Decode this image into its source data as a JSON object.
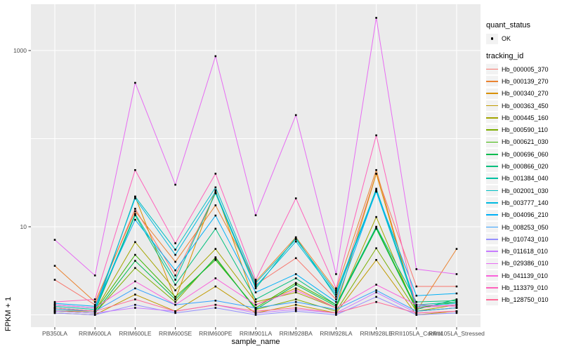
{
  "chart_data": {
    "type": "line",
    "title": "",
    "xlabel": "sample_name",
    "ylabel": "FPKM + 1",
    "y_scale": "log10",
    "ylim": [
      1,
      3400
    ],
    "grid": "on",
    "legend_position": "right",
    "y_axis_ticks": [
      {
        "value": 1000,
        "label": "1000"
      },
      {
        "value": 10,
        "label": "10"
      }
    ],
    "y_gridlines": [
      1,
      10,
      100,
      1000
    ],
    "categories": [
      "PB350LA",
      "RRIM600LA",
      "RRIM600LE",
      "RRIM600SE",
      "RRIM600PE",
      "RRIM901LA",
      "RRIM928BA",
      "RRIM928LA",
      "RRIM928LE",
      "RRII105LA_Control",
      "RRII105LA_Stressed"
    ],
    "quant_status": {
      "title": "quant_status",
      "value": "OK"
    },
    "tracking_id_title": "tracking_id",
    "series": [
      {
        "name": "Hb_000005_370",
        "color": "#F8766D",
        "values": [
          2.5,
          1.3,
          16,
          2.8,
          24,
          2.2,
          4.4,
          1.5,
          40,
          2.1,
          2.1
        ]
      },
      {
        "name": "Hb_000139_270",
        "color": "#EA8331",
        "values": [
          3.6,
          1.4,
          15,
          4.0,
          17.5,
          2.4,
          7.6,
          1.9,
          44,
          1.1,
          5.6
        ]
      },
      {
        "name": "Hb_000340_270",
        "color": "#D89000",
        "values": [
          1.1,
          1.1,
          22,
          1.5,
          26,
          1.3,
          2.0,
          1.2,
          40,
          1.1,
          1.2
        ]
      },
      {
        "name": "Hb_000363_450",
        "color": "#C09B00",
        "values": [
          1.05,
          1.0,
          1.7,
          1.1,
          2.1,
          1.05,
          1.3,
          1.05,
          4.2,
          1.0,
          1.1
        ]
      },
      {
        "name": "Hb_000445_160",
        "color": "#A3A500",
        "values": [
          1.2,
          1.1,
          6.7,
          1.9,
          5.6,
          1.4,
          1.8,
          1.2,
          12.9,
          1.1,
          1.3
        ]
      },
      {
        "name": "Hb_000590_110",
        "color": "#7CAE00",
        "values": [
          1.1,
          1.05,
          3.4,
          1.4,
          4.5,
          1.15,
          1.5,
          1.1,
          5.7,
          1.1,
          1.2
        ]
      },
      {
        "name": "Hb_000621_030",
        "color": "#39B600",
        "values": [
          1.15,
          1.1,
          4.8,
          1.6,
          4.2,
          1.2,
          2.3,
          1.3,
          9.8,
          1.2,
          1.4
        ]
      },
      {
        "name": "Hb_000696_060",
        "color": "#00BB4E",
        "values": [
          1.1,
          1.05,
          4.1,
          1.5,
          4.4,
          1.15,
          2.2,
          1.25,
          9.5,
          1.15,
          1.5
        ]
      },
      {
        "name": "Hb_000866_020",
        "color": "#00BF7D",
        "values": [
          1.2,
          1.1,
          13.5,
          2.2,
          9.5,
          1.5,
          2.6,
          1.3,
          10,
          1.4,
          1.45
        ]
      },
      {
        "name": "Hb_001384_040",
        "color": "#00C1A3",
        "values": [
          1.25,
          1.15,
          14,
          2.5,
          24,
          2.0,
          7.5,
          1.6,
          27,
          1.3,
          1.4
        ]
      },
      {
        "name": "Hb_002001_030",
        "color": "#00BFC4",
        "values": [
          1.2,
          1.1,
          22,
          5.5,
          28,
          2.3,
          7.2,
          1.8,
          26,
          1.2,
          1.3
        ]
      },
      {
        "name": "Hb_003777_140",
        "color": "#00BAE0",
        "values": [
          1.3,
          1.2,
          21,
          4.8,
          25,
          2.1,
          6.8,
          1.7,
          25,
          1.25,
          1.35
        ]
      },
      {
        "name": "Hb_004096_210",
        "color": "#00B0F6",
        "values": [
          1.35,
          1.25,
          12,
          3.2,
          13.4,
          1.8,
          2.9,
          1.4,
          25.5,
          1.65,
          1.75
        ]
      },
      {
        "name": "Hb_008253_050",
        "color": "#35A2FF",
        "values": [
          1.15,
          1.1,
          2.0,
          1.3,
          1.45,
          1.2,
          1.4,
          1.15,
          1.9,
          1.1,
          1.2
        ]
      },
      {
        "name": "Hb_010743_010",
        "color": "#9590FF",
        "values": [
          1.05,
          1.0,
          1.3,
          1.05,
          1.2,
          1.0,
          1.1,
          1.0,
          1.6,
          1.0,
          1.05
        ]
      },
      {
        "name": "Hb_011618_010",
        "color": "#C77CFF",
        "values": [
          1.1,
          1.05,
          1.2,
          1.1,
          1.3,
          1.05,
          1.15,
          1.05,
          1.8,
          1.05,
          1.1
        ]
      },
      {
        "name": "Hb_029386_010",
        "color": "#E76BF3",
        "values": [
          7.1,
          2.8,
          430,
          30,
          863,
          13.5,
          185,
          2.9,
          2350,
          3.3,
          2.9
        ]
      },
      {
        "name": "Hb_041139_010",
        "color": "#FA62DB",
        "values": [
          1.3,
          1.2,
          2.4,
          1.3,
          2.6,
          1.3,
          1.9,
          1.2,
          2.2,
          1.3,
          1.25
        ]
      },
      {
        "name": "Hb_113379_010",
        "color": "#FF62BC",
        "values": [
          1.4,
          1.5,
          44,
          6.5,
          40,
          2.5,
          21,
          2.0,
          109,
          1.2,
          1.3
        ]
      },
      {
        "name": "Hb_128750_010",
        "color": "#FF6A98",
        "values": [
          1.2,
          1.1,
          1.5,
          1.1,
          1.3,
          1.1,
          1.2,
          1.05,
          1.4,
          1.05,
          1.1
        ]
      }
    ]
  }
}
